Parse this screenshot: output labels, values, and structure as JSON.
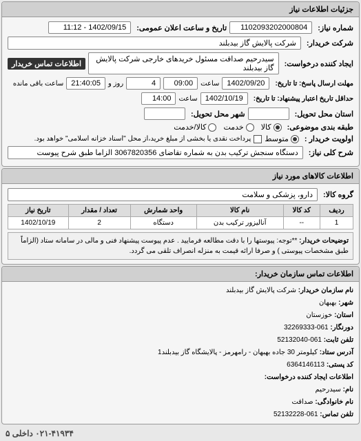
{
  "panels": {
    "need_info_title": "جزئیات اطلاعات نیاز",
    "items_title": "اطلاعات کالاهای مورد نیاز",
    "contact_title": "اطلاعات تماس سازمان خریدار:"
  },
  "fields": {
    "request_no_label": "شماره نیاز:",
    "request_no": "1102093202000804",
    "announce_label": "تاریخ و ساعت اعلان عمومی:",
    "announce_value": "1402/09/15 - 11:12",
    "buyer_company_label": "شرکت خریدار:",
    "buyer_company": "شرکت پالایش گاز بیدبلند",
    "creator_label": "ایجاد کننده درخواست:",
    "creator": "سیدرحیم صداقت مسئول خریدهای خارجی شرکت پالایش گاز بیدبلند",
    "buyer_contact_btn": "اطلاعات تماس خریدار",
    "deadline_label": "مهلت ارسال پاسخ: تا تاریخ:",
    "deadline_date": "1402/09/20",
    "time_label": "ساعت",
    "deadline_time": "09:00",
    "remaining_days_label": "روز و",
    "remaining_days": "4",
    "remaining_time": "21:40:05",
    "remaining_suffix": "ساعت باقی مانده",
    "validity_label": "حداقل تاریخ اعتبار پیشنهاد: تا تاریخ:",
    "validity_date": "1402/10/19",
    "validity_time": "14:00",
    "delivery_label": "استان محل تحویل:",
    "delivery_city_label": "شهر محل تحویل:",
    "pkg_label": "طبقه بندی موضوعی:",
    "pkg_goods": "کالا",
    "pkg_service": "خدمت",
    "pkg_lease": "کالا/خدمت",
    "priority_label": "اولویت خریدار :",
    "priority_avg": "متوسط",
    "settle_note": "پرداخت نقدی یا بخشی از مبلغ خرید،از محل \"اسناد خزانه اسلامی\" خواهد بود.",
    "desc_label": "شرح کلی نیاز:",
    "desc": "دستگاه سنجش ترکیب بدن به شماره تقاضای 3067820356 الزاما طبق شرح پیوست",
    "group_label": "گروه کالا:",
    "group": "دارو، پزشکی و سلامت"
  },
  "table": {
    "headers": [
      "ردیف",
      "کد کالا",
      "نام کالا",
      "واحد شمارش",
      "تعداد / مقدار",
      "تاریخ نیاز"
    ],
    "rows": [
      [
        "1",
        "--",
        "آنالیزور ترکیب بدن",
        "دستگاه",
        "2",
        "1402/10/19"
      ]
    ]
  },
  "note": {
    "label": "توضیحات خریدار:",
    "text": "**توجه: پیوستها را با دقت مطالعه فرمایید . عدم پیوست پیشنهاد فنی و مالی در سامانه ستاد (الزاماً طبق مشخصات پیوستی ) و صرفا ارائه قیمت به منزله انصراف تلقی می گردد."
  },
  "contact": {
    "org_label": "نام سازمان خریدار:",
    "org": "شرکت پالایش گاز بیدبلند",
    "city_label": "شهر:",
    "city": "بهبهان",
    "province_label": "استان:",
    "province": "خوزستان",
    "fax_label": "دورنگار:",
    "fax": "061-32269333",
    "phone_label": "تلفن ثابت:",
    "phone": "061-52132040",
    "addr_label": "آدرس ستاد:",
    "addr": "کیلومتر 30 جاده بهبهان - رامهرمز - پالایشگاه گاز بیدبلند1",
    "post_label": "کد پستی:",
    "post": "6364146113",
    "req_creator_label": "اطلاعات ایجاد کننده درخواست:",
    "name_label": "نام:",
    "name": "سیدرحیم",
    "family_label": "نام خانوادگی:",
    "family": "صداقت",
    "contact_phone_label": "تلفن تماس:",
    "contact_phone": "061-52132228"
  },
  "footer_phone": "۰۲۱-۴۱۹۳۴ داخلی ۵"
}
